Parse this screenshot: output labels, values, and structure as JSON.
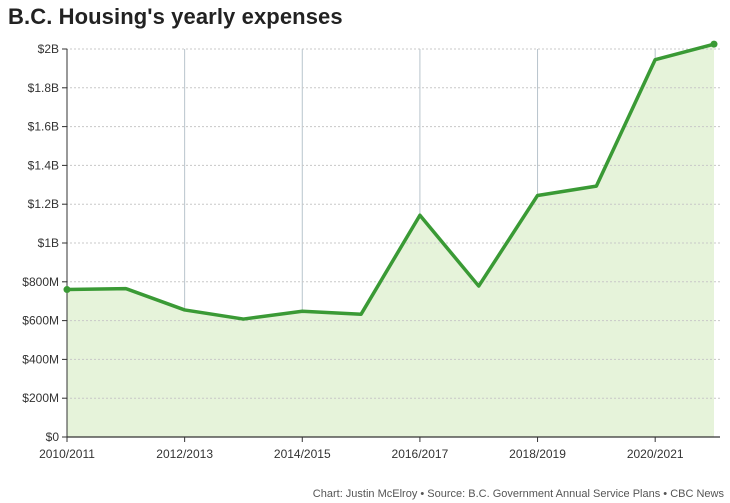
{
  "title": "B.C. Housing's yearly expenses",
  "credit": "Chart: Justin McElroy • Source: B.C. Government Annual Service Plans • CBC News",
  "colors": {
    "line": "#3a9a35",
    "fill": "#e6f3da",
    "grid": "#c8c8c8",
    "axis": "#333333",
    "vgrid": "#b8c4cc"
  },
  "chart_data": {
    "type": "area",
    "title": "B.C. Housing's yearly expenses",
    "x": [
      "2010/2011",
      "2011/2012",
      "2012/2013",
      "2013/2014",
      "2014/2015",
      "2015/2016",
      "2016/2017",
      "2017/2018",
      "2018/2019",
      "2019/2020",
      "2020/2021",
      "2021/2022"
    ],
    "x_tick_labels": [
      "2010/2011",
      "2012/2013",
      "2014/2015",
      "2016/2017",
      "2018/2019",
      "2020/2021"
    ],
    "series": [
      {
        "values": [
          760,
          765,
          655,
          608,
          648,
          633,
          1143,
          778,
          1245,
          1293,
          1945,
          2025
        ]
      }
    ],
    "y_unit": "millions of dollars",
    "ylim": [
      0,
      2000
    ],
    "y_ticks": [
      0,
      200,
      400,
      600,
      800,
      1000,
      1200,
      1400,
      1600,
      1800,
      2000
    ],
    "y_tick_labels": [
      "$0",
      "$200M",
      "$400M",
      "$600M",
      "$800M",
      "$1B",
      "$1.2B",
      "$1.4B",
      "$1.6B",
      "$1.8B",
      "$2B"
    ],
    "grid": true,
    "xlabel": "",
    "ylabel": ""
  }
}
